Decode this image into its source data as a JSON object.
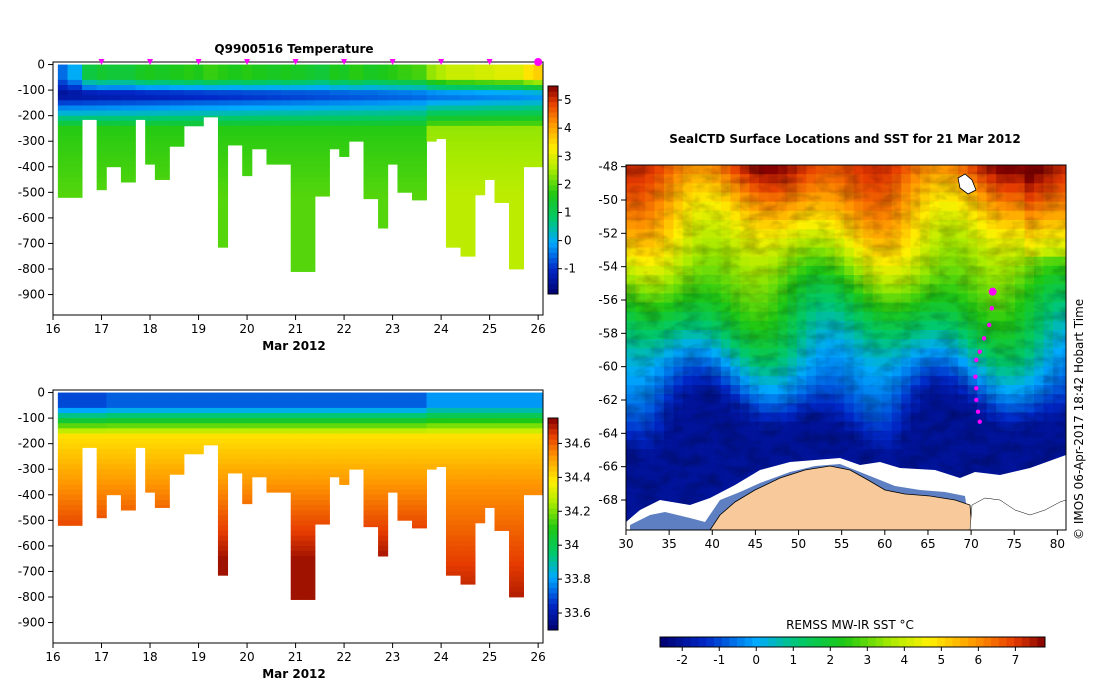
{
  "colors": {
    "land": "#f8c99a",
    "ice": "#ffffff",
    "marker": "#ff00ff",
    "axis": "#000000"
  },
  "chart_data": [
    {
      "type": "heatmap",
      "title": "Q9900516  Temperature",
      "xlabel": "Mar 2012",
      "x_ticks": [
        "16",
        "17",
        "18",
        "19",
        "20",
        "21",
        "22",
        "23",
        "24",
        "25",
        "26"
      ],
      "xlim": [
        16,
        26.1
      ],
      "ylim": [
        -980,
        10
      ],
      "y_ticks": [
        "0",
        "-100",
        "-200",
        "-300",
        "-400",
        "-500",
        "-600",
        "-700",
        "-800",
        "-900"
      ],
      "colorbar": {
        "min": -1.9,
        "max": 5.5,
        "ticks": [
          "-1",
          "0",
          "1",
          "2",
          "3",
          "4",
          "5"
        ]
      },
      "profiles": [
        {
          "day": 16.1,
          "depth": 520,
          "surface": -0.5
        },
        {
          "day": 16.3,
          "depth": 520,
          "surface": 0.0
        },
        {
          "day": 16.6,
          "depth": 215,
          "surface": 1.2
        },
        {
          "day": 16.9,
          "depth": 490,
          "surface": 1.4
        },
        {
          "day": 17.1,
          "depth": 400,
          "surface": 1.3
        },
        {
          "day": 17.4,
          "depth": 460,
          "surface": 1.3
        },
        {
          "day": 17.7,
          "depth": 215,
          "surface": 1.5
        },
        {
          "day": 17.9,
          "depth": 390,
          "surface": 1.6
        },
        {
          "day": 18.1,
          "depth": 450,
          "surface": 1.5
        },
        {
          "day": 18.4,
          "depth": 320,
          "surface": 1.6
        },
        {
          "day": 18.7,
          "depth": 240,
          "surface": 1.7
        },
        {
          "day": 18.9,
          "depth": 240,
          "surface": 1.6
        },
        {
          "day": 19.1,
          "depth": 205,
          "surface": 1.8
        },
        {
          "day": 19.4,
          "depth": 715,
          "surface": 1.7
        },
        {
          "day": 19.6,
          "depth": 315,
          "surface": 1.6
        },
        {
          "day": 19.9,
          "depth": 435,
          "surface": 1.7
        },
        {
          "day": 20.1,
          "depth": 330,
          "surface": 1.6
        },
        {
          "day": 20.4,
          "depth": 390,
          "surface": 1.5
        },
        {
          "day": 20.7,
          "depth": 390,
          "surface": 1.6
        },
        {
          "day": 20.9,
          "depth": 810,
          "surface": 1.5
        },
        {
          "day": 21.2,
          "depth": 810,
          "surface": 1.4
        },
        {
          "day": 21.4,
          "depth": 515,
          "surface": 1.3
        },
        {
          "day": 21.7,
          "depth": 330,
          "surface": 1.6
        },
        {
          "day": 21.9,
          "depth": 360,
          "surface": 1.5
        },
        {
          "day": 22.1,
          "depth": 300,
          "surface": 1.7
        },
        {
          "day": 22.4,
          "depth": 525,
          "surface": 1.5
        },
        {
          "day": 22.7,
          "depth": 640,
          "surface": 1.6
        },
        {
          "day": 22.9,
          "depth": 390,
          "surface": 1.7
        },
        {
          "day": 23.1,
          "depth": 500,
          "surface": 1.8
        },
        {
          "day": 23.4,
          "depth": 530,
          "surface": 1.9
        },
        {
          "day": 23.7,
          "depth": 300,
          "surface": 2.4
        },
        {
          "day": 23.9,
          "depth": 290,
          "surface": 2.6
        },
        {
          "day": 24.1,
          "depth": 715,
          "surface": 2.8
        },
        {
          "day": 24.4,
          "depth": 750,
          "surface": 2.8
        },
        {
          "day": 24.7,
          "depth": 510,
          "surface": 2.9
        },
        {
          "day": 24.9,
          "depth": 450,
          "surface": 2.9
        },
        {
          "day": 25.1,
          "depth": 540,
          "surface": 3.0
        },
        {
          "day": 25.4,
          "depth": 800,
          "surface": 3.0
        },
        {
          "day": 25.7,
          "depth": 400,
          "surface": 3.4
        },
        {
          "day": 25.9,
          "depth": 400,
          "surface": 3.6
        }
      ],
      "marker_days": [
        17.0,
        18.0,
        19.0,
        20.0,
        21.0,
        22.0,
        23.0,
        24.0,
        25.0
      ],
      "current_day": 26.0
    },
    {
      "type": "heatmap",
      "title": "",
      "xlabel": "Mar 2012",
      "x_ticks": [
        "16",
        "17",
        "18",
        "19",
        "20",
        "21",
        "22",
        "23",
        "24",
        "25",
        "26"
      ],
      "xlim": [
        16,
        26.1
      ],
      "ylim": [
        -980,
        10
      ],
      "y_ticks": [
        "0",
        "-100",
        "-200",
        "-300",
        "-400",
        "-500",
        "-600",
        "-700",
        "-800",
        "-900"
      ],
      "colorbar": {
        "min": 33.5,
        "max": 34.75,
        "ticks": [
          "33.6",
          "33.8",
          "34",
          "34.2",
          "34.4",
          "34.6"
        ]
      }
    },
    {
      "type": "heatmap",
      "title": "SealCTD Surface Locations and SST for 21 Mar 2012",
      "x_ticks": [
        "30",
        "35",
        "40",
        "45",
        "50",
        "55",
        "60",
        "65",
        "70",
        "75",
        "80"
      ],
      "xlim": [
        30,
        81
      ],
      "y_ticks": [
        "-48",
        "-50",
        "-52",
        "-54",
        "-56",
        "-58",
        "-60",
        "-62",
        "-64",
        "-66",
        "-68"
      ],
      "ylim": [
        -69.8,
        -47.9
      ],
      "colorbar": {
        "label": "REMSS MW-IR SST °C",
        "min": -2.6,
        "max": 7.8,
        "ticks": [
          "-2",
          "-1",
          "0",
          "1",
          "2",
          "3",
          "4",
          "5",
          "6",
          "7"
        ]
      },
      "track": [
        {
          "lon": 72.5,
          "lat": -55.5
        },
        {
          "lon": 72.4,
          "lat": -56.5
        },
        {
          "lon": 72.1,
          "lat": -57.5
        },
        {
          "lon": 71.5,
          "lat": -58.3
        },
        {
          "lon": 71.0,
          "lat": -59.1
        },
        {
          "lon": 70.6,
          "lat": -59.6
        },
        {
          "lon": 70.5,
          "lat": -60.6
        },
        {
          "lon": 70.6,
          "lat": -61.3
        },
        {
          "lon": 70.6,
          "lat": -62.0
        },
        {
          "lon": 70.8,
          "lat": -62.7
        },
        {
          "lon": 71.0,
          "lat": -63.3
        }
      ],
      "credit": "© IMOS 06-Apr-2017 18:42 Hobart Time"
    }
  ]
}
